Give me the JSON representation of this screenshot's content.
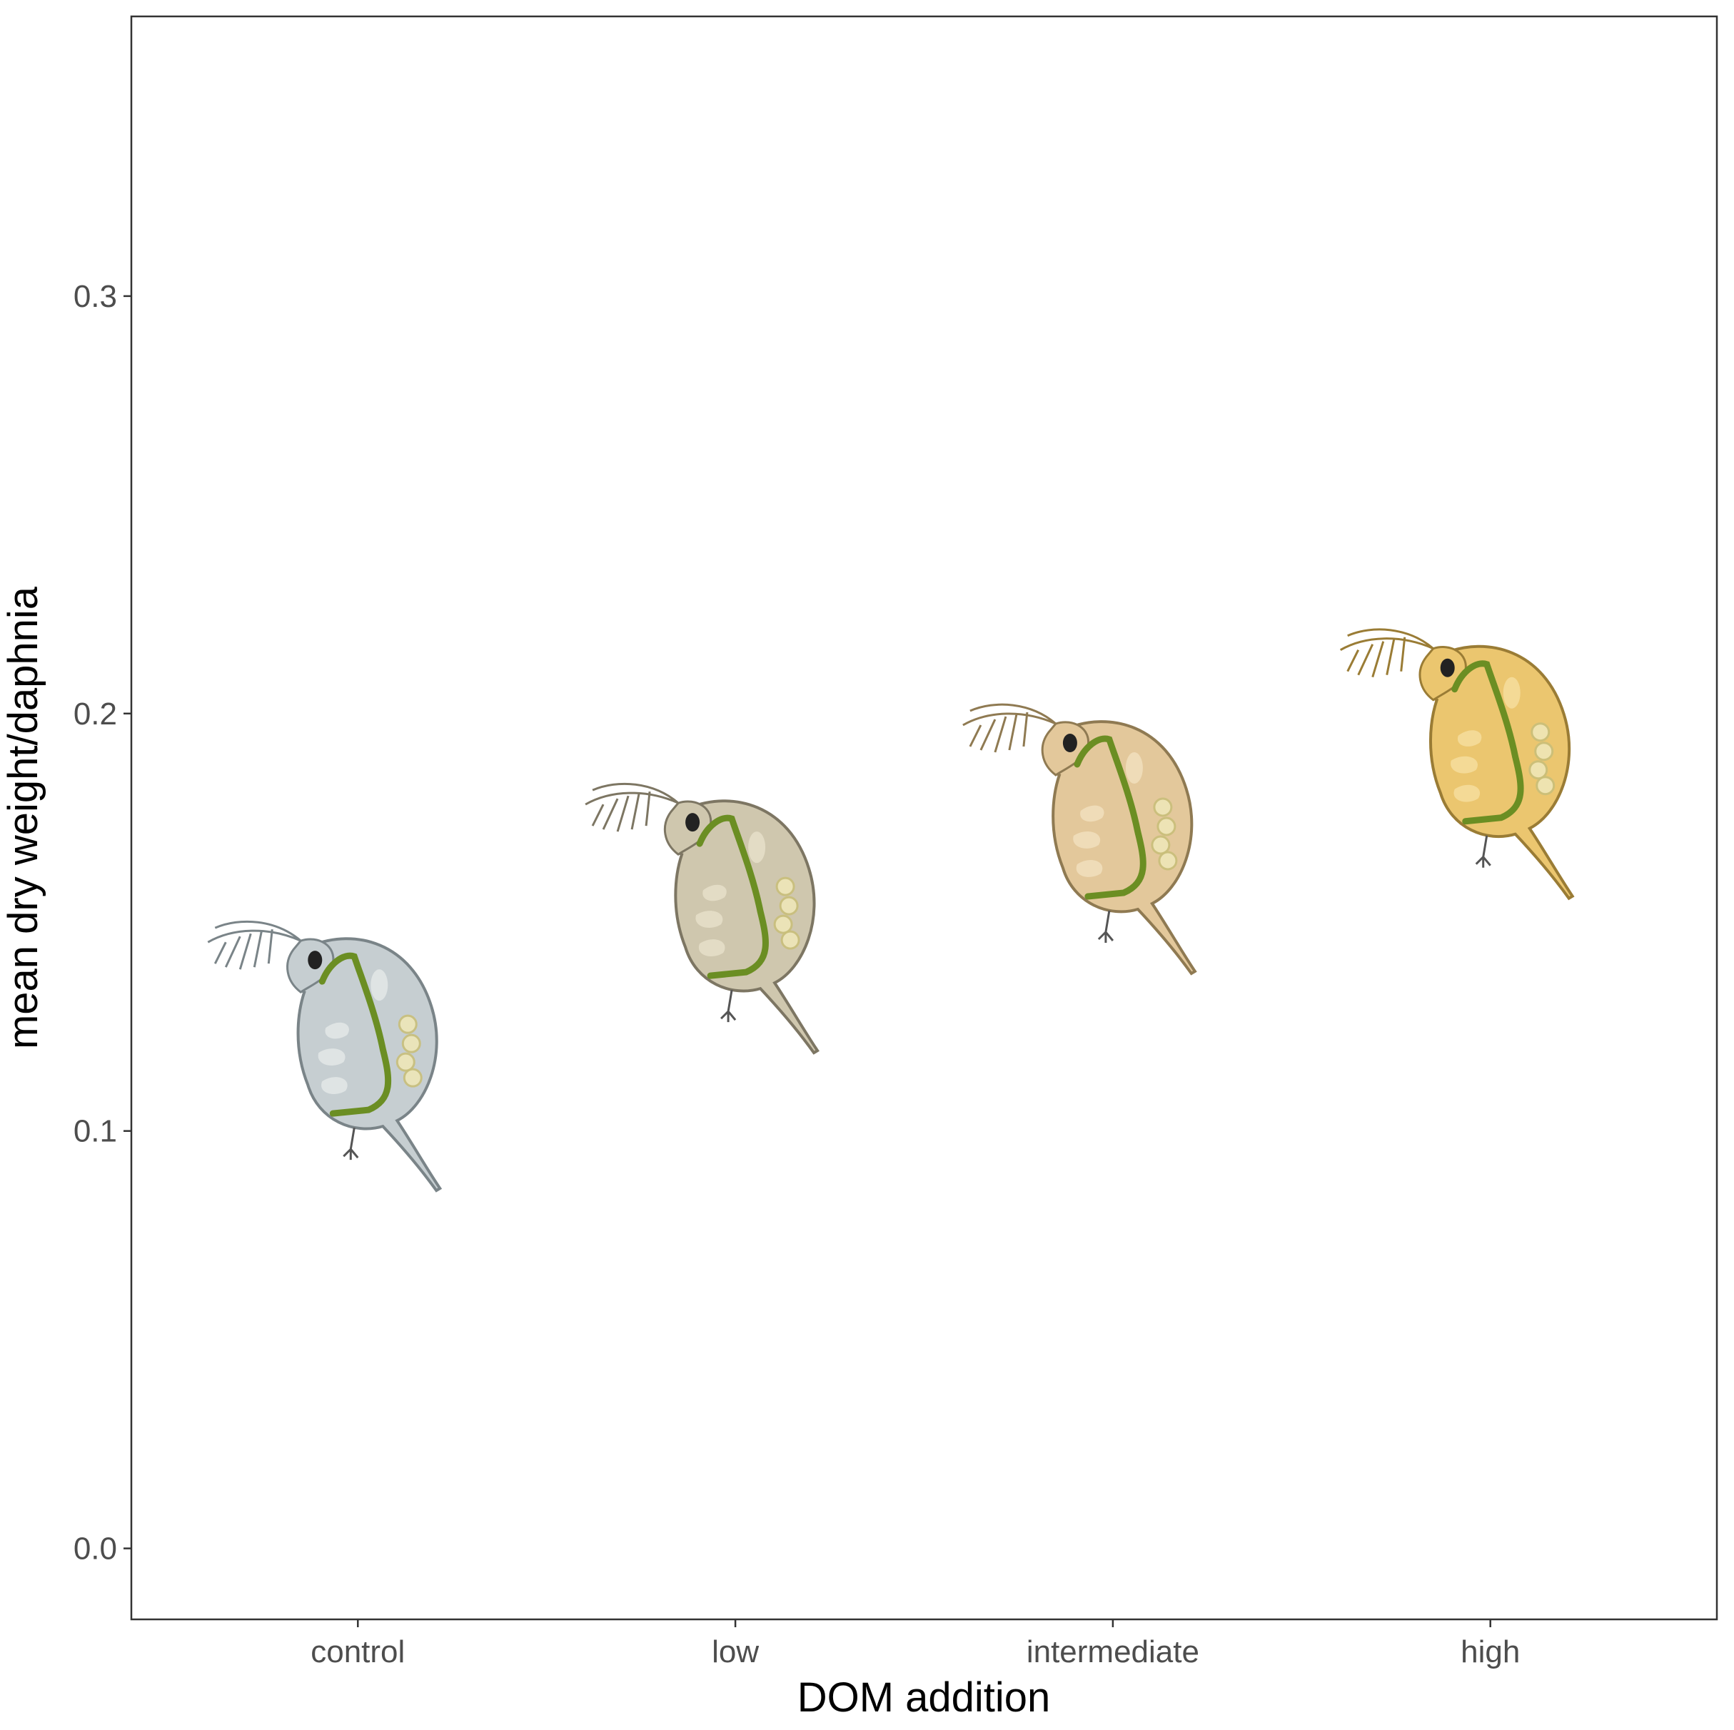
{
  "chart_data": {
    "type": "scatter",
    "point_style": "daphnia-icon",
    "xlabel": "DOM addition",
    "ylabel": "mean dry weight/daphnia",
    "categories": [
      "control",
      "low",
      "intermediate",
      "high"
    ],
    "values": [
      0.123,
      0.156,
      0.175,
      0.193
    ],
    "ylim": [
      -0.017,
      0.367
    ],
    "yticks": [
      0.0,
      0.1,
      0.2,
      0.3
    ],
    "ytick_labels": [
      "0.0",
      "0.1",
      "0.2",
      "0.3"
    ],
    "grid": false,
    "legend": "none",
    "point_colors": [
      {
        "shell": "#c6ced1",
        "edge": "#7a8488",
        "organ": "#e3e7e8"
      },
      {
        "shell": "#cfc7ae",
        "edge": "#7d7663",
        "organ": "#e6dfc9"
      },
      {
        "shell": "#e3c89b",
        "edge": "#8f7a52",
        "organ": "#f1dfbd"
      },
      {
        "shell": "#ebc66f",
        "edge": "#9a7c35",
        "organ": "#f6dd9e"
      }
    ],
    "gut_color": "#6b8e23",
    "eye_color": "#222222"
  }
}
